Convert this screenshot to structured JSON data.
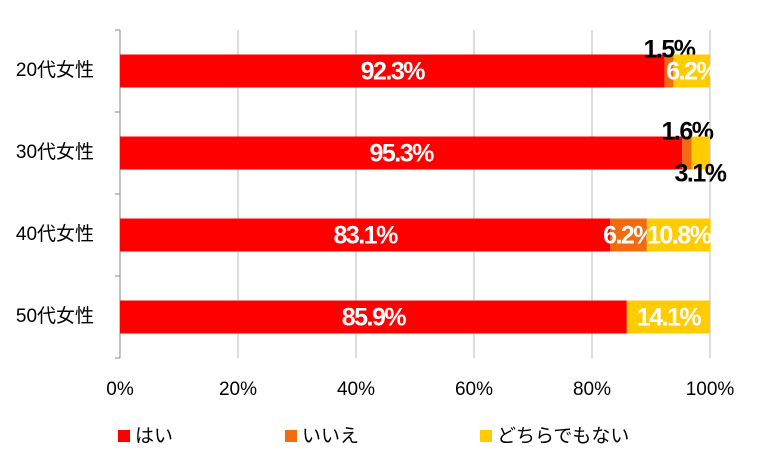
{
  "chart_data": {
    "type": "stacked-bar-horizontal",
    "categories": [
      "20代女性",
      "30代女性",
      "40代女性",
      "50代女性"
    ],
    "series": [
      {
        "name": "はい",
        "color": "#ff0000",
        "values": [
          92.3,
          95.3,
          83.1,
          85.9
        ],
        "value_labels": [
          "92.3%",
          "95.3%",
          "83.1%",
          "85.9%"
        ]
      },
      {
        "name": "いいえ",
        "color": "#f26b0f",
        "values": [
          1.5,
          1.6,
          6.2,
          null
        ],
        "value_labels": [
          "1.5%",
          "1.6%",
          "6.2%",
          null
        ]
      },
      {
        "name": "どちらでもない",
        "color": "#ffcc00",
        "values": [
          6.2,
          3.1,
          10.8,
          14.1
        ],
        "value_labels": [
          "6.2%",
          "3.1%",
          "10.8%",
          "14.1%"
        ]
      }
    ],
    "xlim": [
      0,
      100
    ],
    "xticks": [
      {
        "value": 0,
        "label": "0%"
      },
      {
        "value": 20,
        "label": "20%"
      },
      {
        "value": 40,
        "label": "40%"
      },
      {
        "value": 60,
        "label": "60%"
      },
      {
        "value": 80,
        "label": "80%"
      },
      {
        "value": 100,
        "label": "100%"
      }
    ],
    "grid": true,
    "legend": "bottom"
  }
}
